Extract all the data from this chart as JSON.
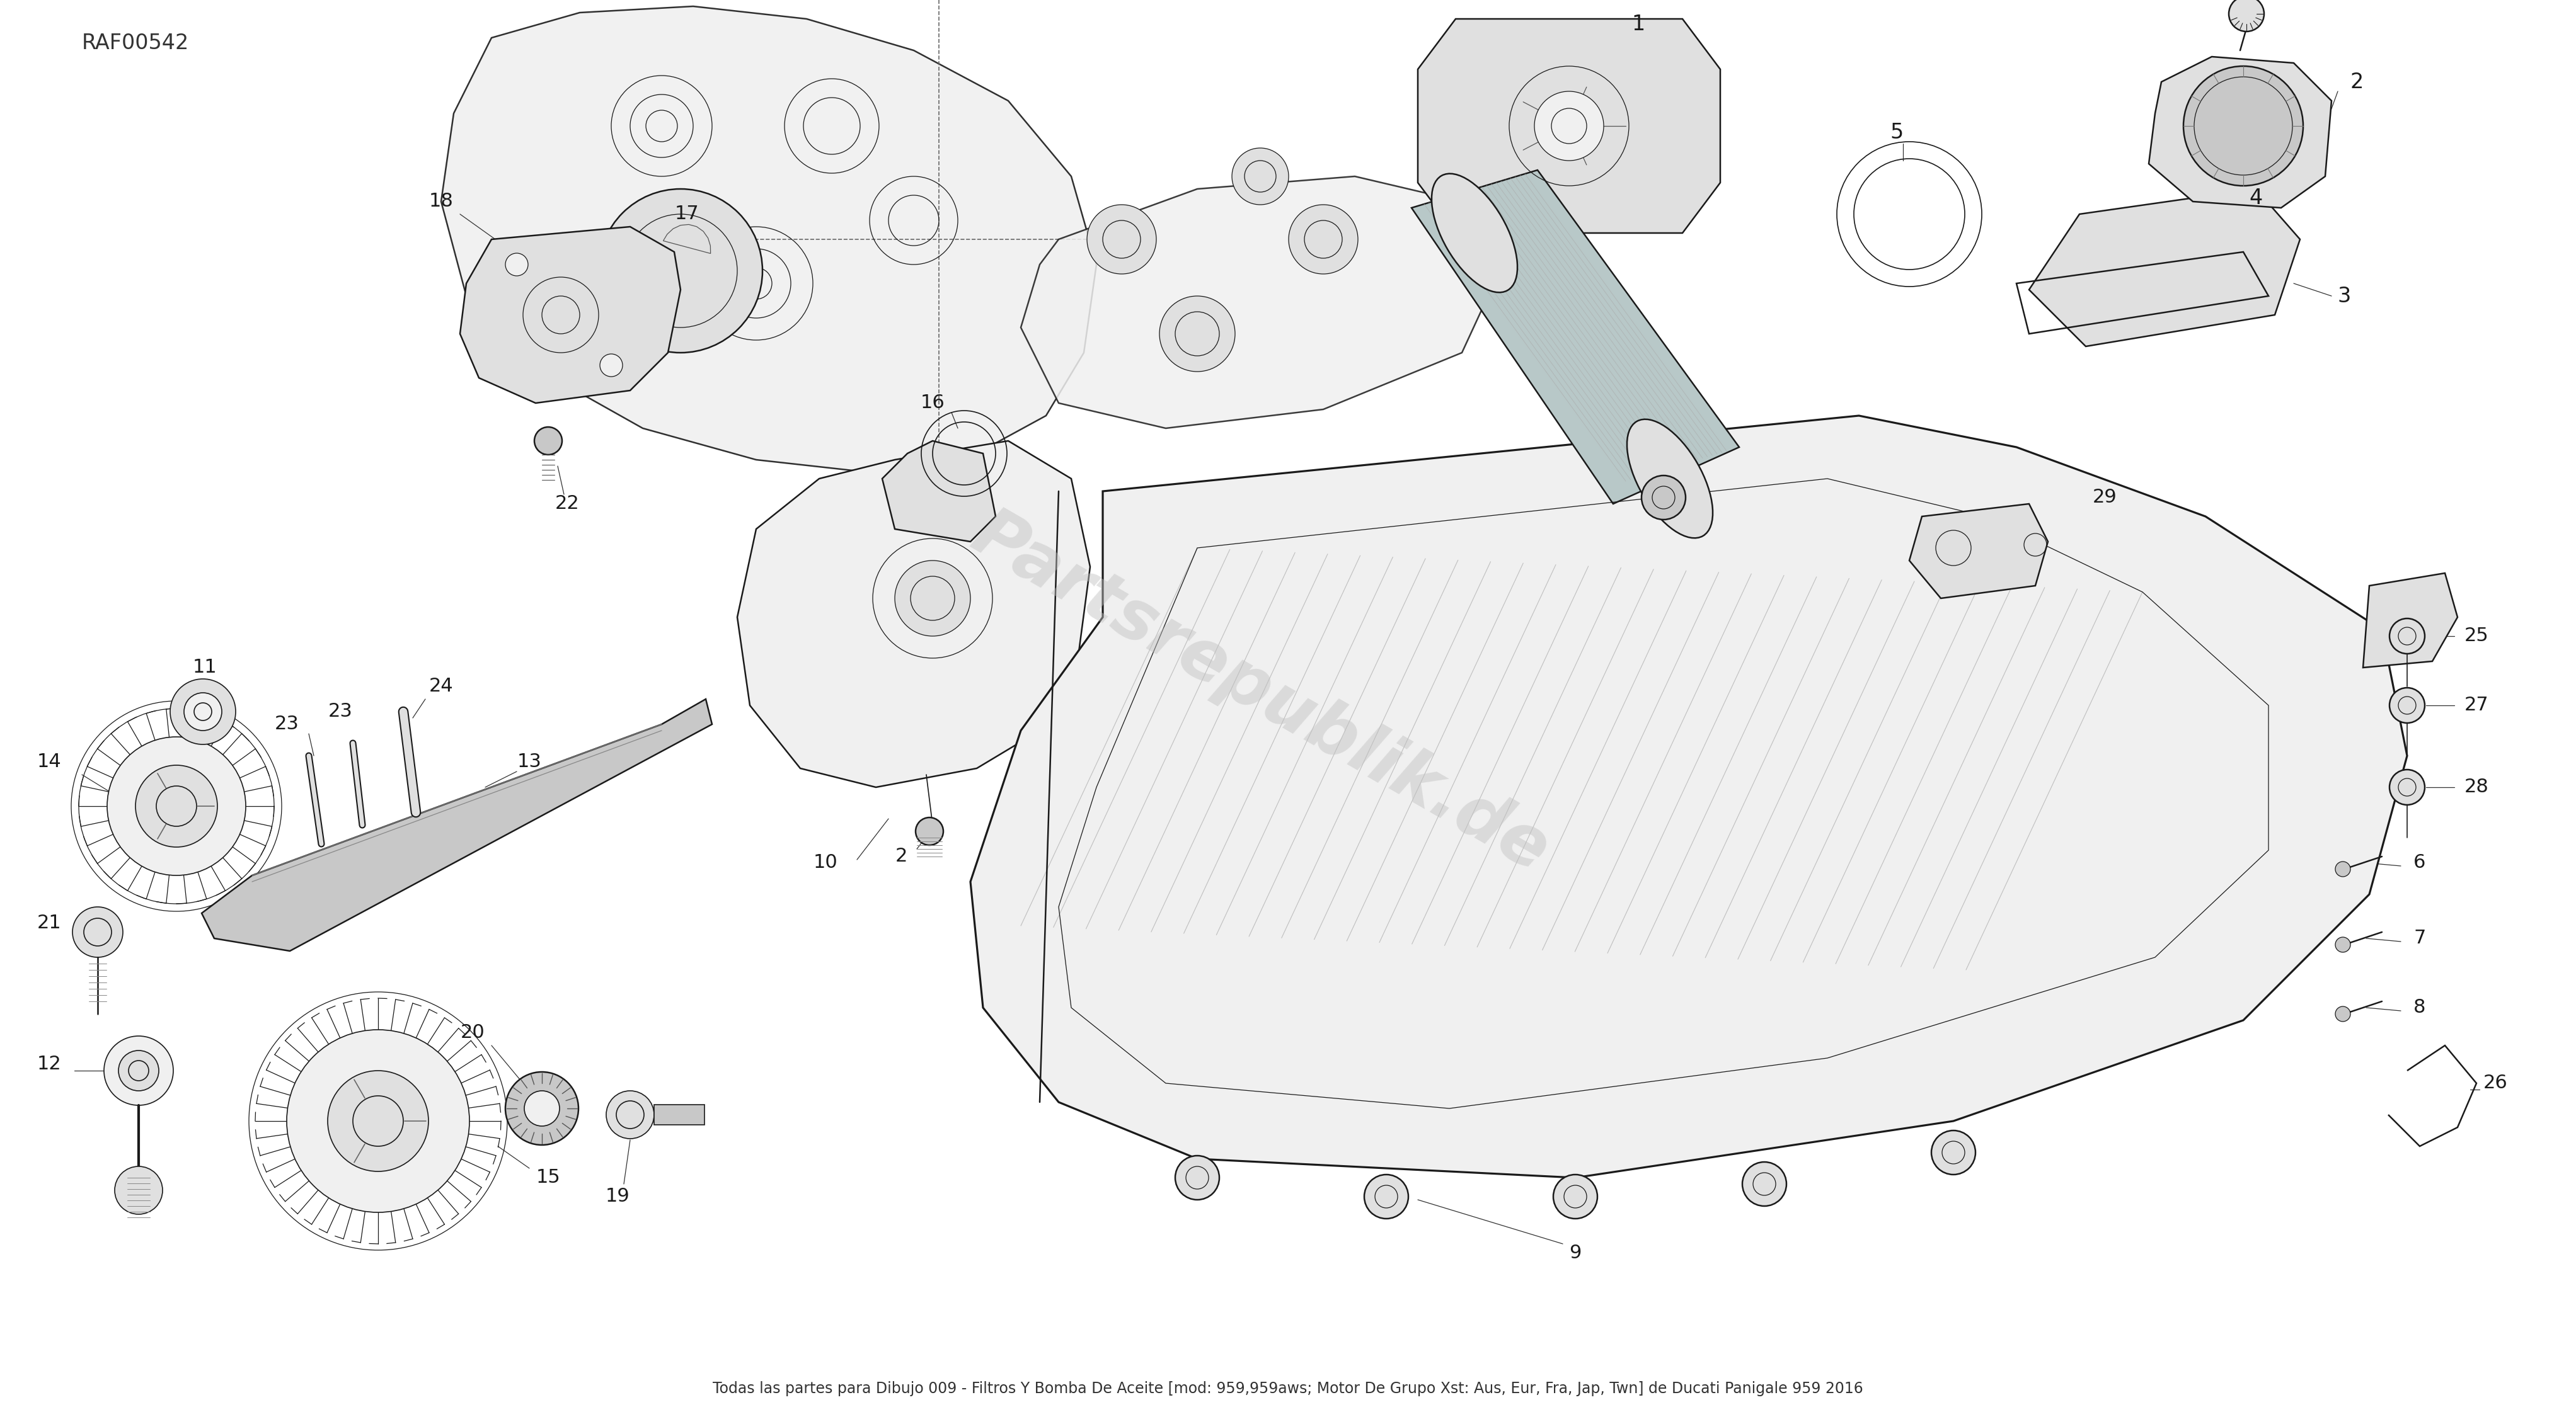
{
  "title": "Todas las partes para Dibujo 009 - Filtros Y Bomba De Aceite [mod: 959,959aws; Motor De Grupo Xst: Aus, Eur, Fra, Jap, Twn] de Ducati Panigale 959 2016",
  "ref_code": "RAF00542",
  "watermark": "Partsrepublik.de",
  "background_color": "#ffffff",
  "fig_width": 40.88,
  "fig_height": 22.42,
  "line_color": "#1a1a1a",
  "watermark_color": "#c0c0c0",
  "label_color": "#222222",
  "leader_color": "#333333",
  "fill_light": "#f0f0f0",
  "fill_mid": "#e0e0e0",
  "fill_dark": "#c8c8c8",
  "fill_filter": "#b8c8c8"
}
